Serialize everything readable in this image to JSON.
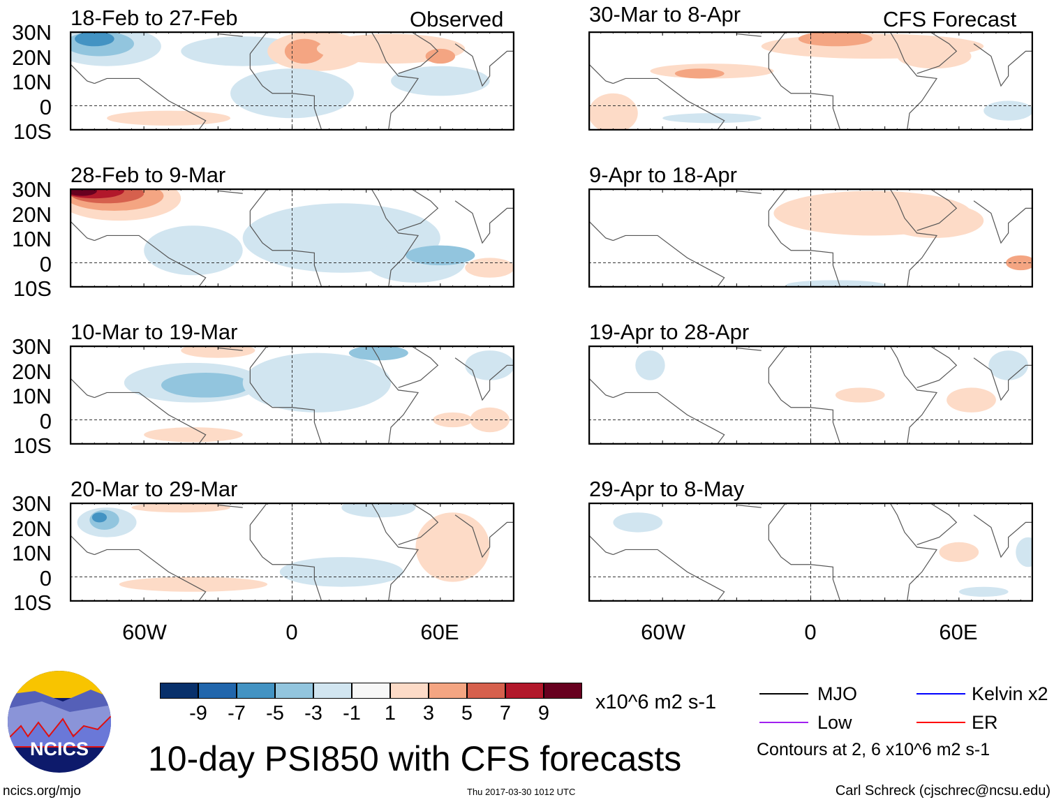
{
  "title": "10-day PSI850 with CFS forecasts",
  "units": "x10^6 m2 s-1",
  "observed_label": "Observed",
  "forecast_label": "CFS Forecast",
  "latitude_labels": [
    "30N",
    "20N",
    "10N",
    "0",
    "10S"
  ],
  "longitude_labels": [
    "60W",
    "0",
    "60E"
  ],
  "panels_observed": [
    "18-Feb to 27-Feb",
    "28-Feb to 9-Mar",
    "10-Mar to 19-Mar",
    "20-Mar to 29-Mar"
  ],
  "panels_forecast": [
    "30-Mar to 8-Apr",
    "9-Apr to 18-Apr",
    "19-Apr to 28-Apr",
    "29-Apr to 8-May"
  ],
  "colorbar": {
    "colors": [
      "#08306b",
      "#2166ac",
      "#4393c3",
      "#92c5de",
      "#d1e5f0",
      "#f7f7f7",
      "#fddbc7",
      "#f4a582",
      "#d6604d",
      "#b2182b",
      "#67001f"
    ],
    "labels": [
      "-9",
      "-7",
      "-5",
      "-3",
      "-1",
      "1",
      "3",
      "5",
      "7",
      "9"
    ]
  },
  "legend": {
    "items": [
      {
        "label": "MJO",
        "color": "#000000"
      },
      {
        "label": "Kelvin x2",
        "color": "#0000ff"
      },
      {
        "label": "Low",
        "color": "#a020f0"
      },
      {
        "label": "ER",
        "color": "#ff0000"
      }
    ],
    "contours_note": "Contours at 2, 6 x10^6 m2 s-1"
  },
  "logo_text": "NCICS",
  "footer": {
    "website": "ncics.org/mjo",
    "timestamp": "Thu 2017-03-30 1012 UTC",
    "author": "Carl Schreck (cjschrec@ncsu.edu)"
  }
}
